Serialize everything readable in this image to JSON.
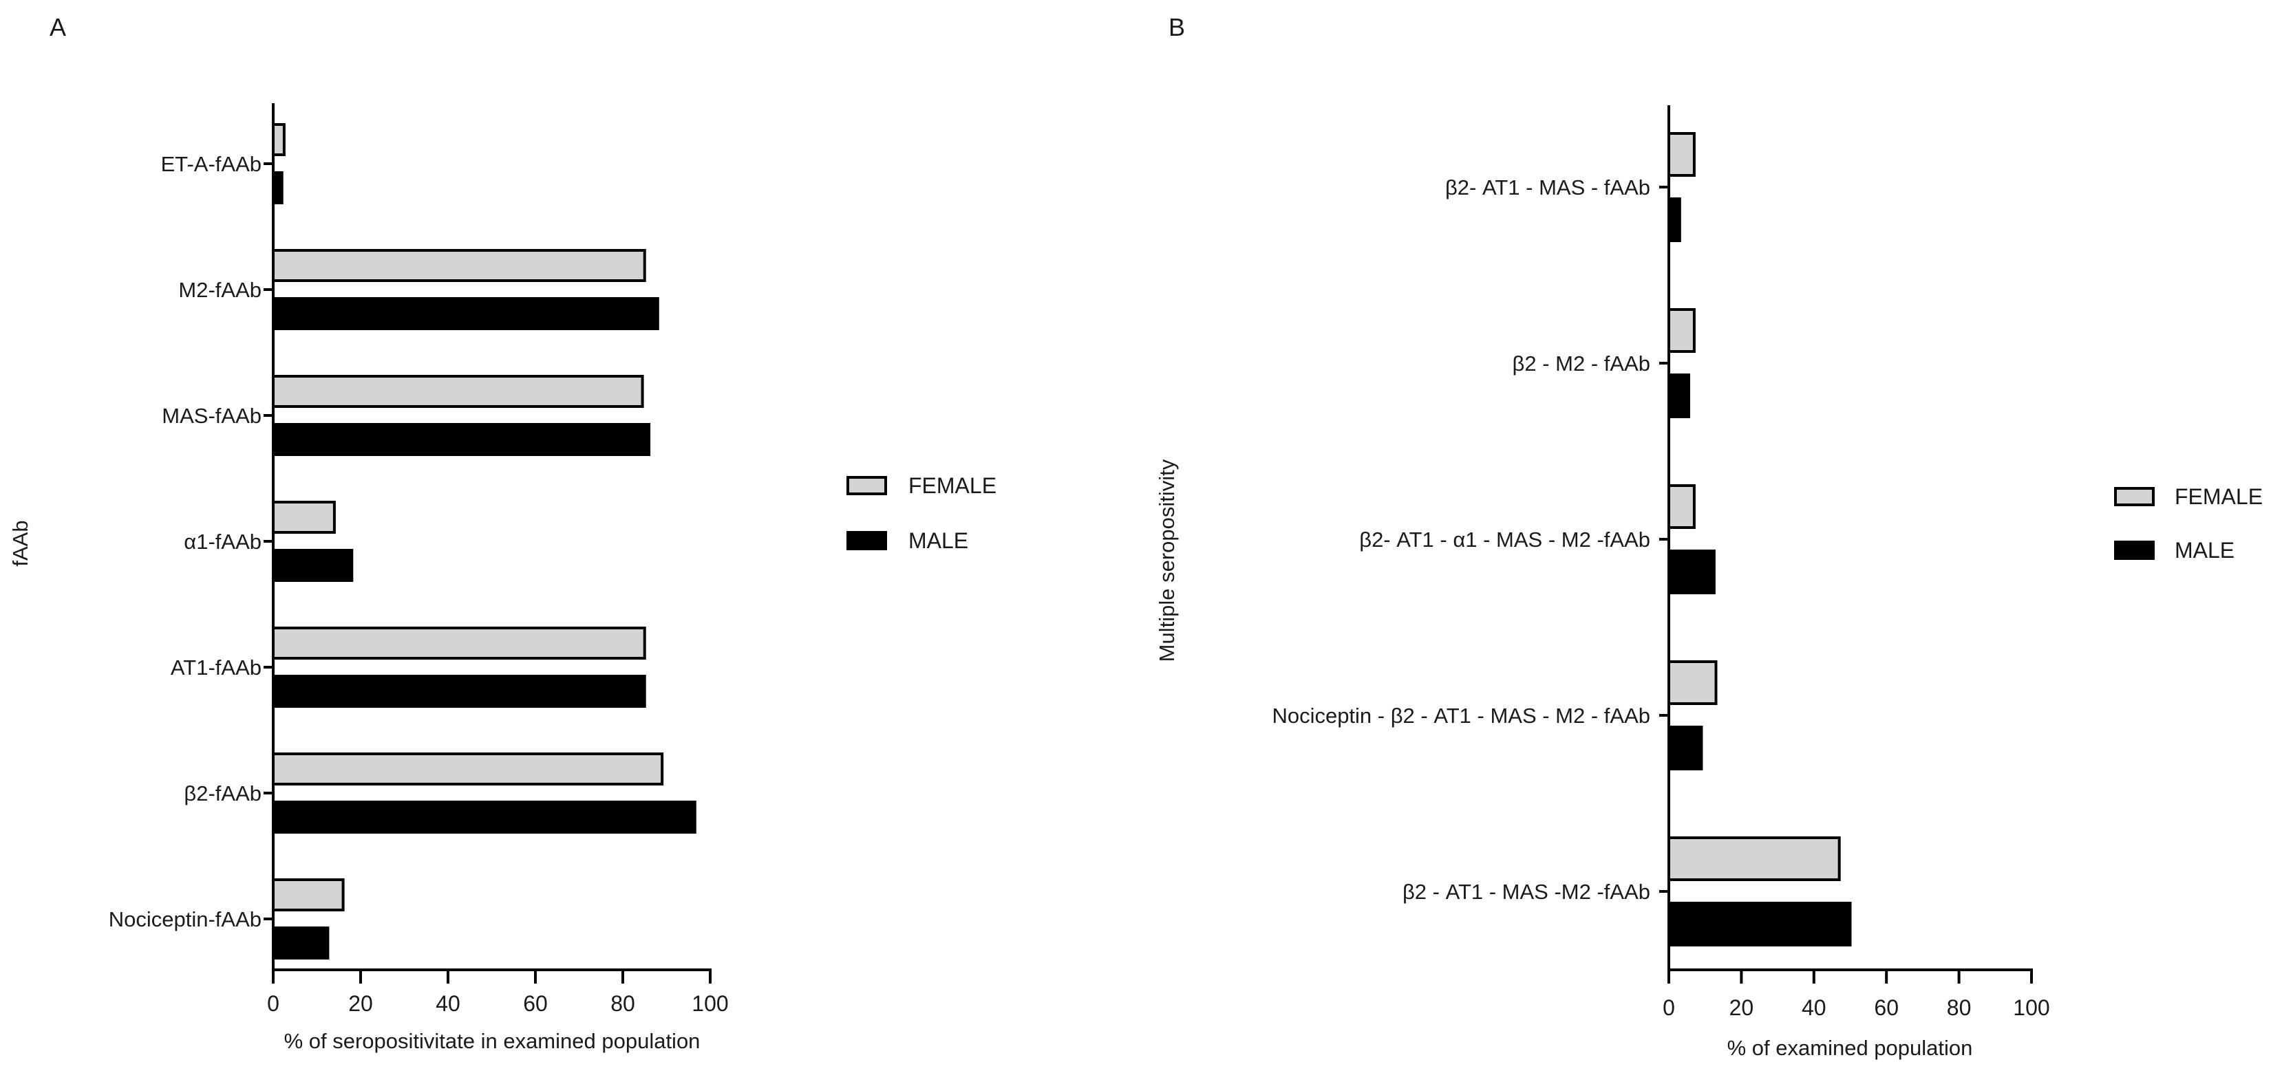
{
  "chart_data": [
    {
      "type": "bar",
      "orientation": "horizontal",
      "panel_label": "A",
      "title": "",
      "xlabel": "% of seropositivitate in examined population",
      "ylabel": "fAAb",
      "xlim": [
        0,
        100
      ],
      "xticks": [
        0,
        20,
        40,
        60,
        80,
        100
      ],
      "categories": [
        "ET-A-fAAb",
        "M2-fAAb",
        "MAS-fAAb",
        "α1-fAAb",
        "AT1-fAAb",
        "β2-fAAb",
        "Nociceptin-fAAb"
      ],
      "series": [
        {
          "name": "FEMALE",
          "color": "#d3d3d3",
          "values": [
            2.5,
            85,
            84.5,
            14,
            85,
            89,
            16
          ]
        },
        {
          "name": "MALE",
          "color": "#000000",
          "values": [
            2,
            88,
            86,
            18,
            85,
            96.5,
            12.5
          ]
        }
      ],
      "legend": {
        "entries": [
          "FEMALE",
          "MALE"
        ],
        "placement": "right"
      }
    },
    {
      "type": "bar",
      "orientation": "horizontal",
      "panel_label": "B",
      "title": "",
      "xlabel": "% of examined population",
      "ylabel": "Multiple seropositivity",
      "xlim": [
        0,
        100
      ],
      "xticks": [
        0,
        20,
        40,
        60,
        80,
        100
      ],
      "categories": [
        "β2- AT1  - MAS - fAAb",
        "β2 -  M2 - fAAb",
        "β2- AT1 - α1 - MAS - M2 -fAAb",
        "Nociceptin - β2 - AT1  - MAS - M2 - fAAb",
        "β2 - AT1 - MAS -M2 -fAAb"
      ],
      "series": [
        {
          "name": "FEMALE",
          "color": "#d3d3d3",
          "values": [
            7,
            7,
            7,
            13,
            47
          ]
        },
        {
          "name": "MALE",
          "color": "#000000",
          "values": [
            3,
            5.5,
            12.5,
            9,
            50
          ]
        }
      ],
      "legend": {
        "entries": [
          "FEMALE",
          "MALE"
        ],
        "placement": "right"
      }
    }
  ]
}
